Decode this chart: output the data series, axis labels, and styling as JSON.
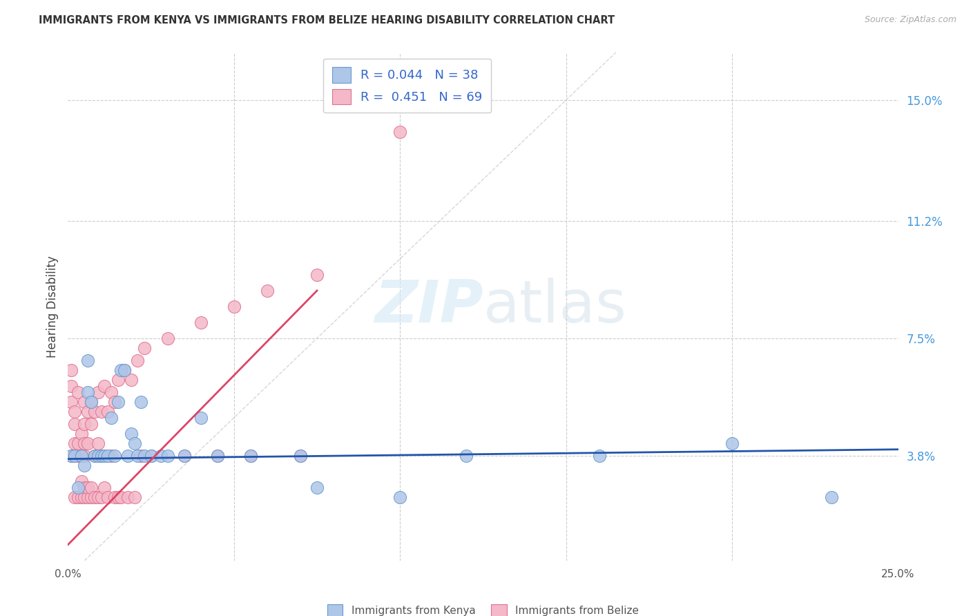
{
  "title": "IMMIGRANTS FROM KENYA VS IMMIGRANTS FROM BELIZE HEARING DISABILITY CORRELATION CHART",
  "source": "Source: ZipAtlas.com",
  "ylabel": "Hearing Disability",
  "xlim": [
    0.0,
    0.25
  ],
  "ylim": [
    0.005,
    0.165
  ],
  "ytick_positions": [
    0.038,
    0.075,
    0.112,
    0.15
  ],
  "ytick_labels": [
    "3.8%",
    "7.5%",
    "11.2%",
    "15.0%"
  ],
  "grid_color": "#cccccc",
  "background_color": "#ffffff",
  "kenya_color": "#aec6e8",
  "kenya_edge": "#6699cc",
  "belize_color": "#f4b8c8",
  "belize_edge": "#e07090",
  "kenya_R": 0.044,
  "kenya_N": 38,
  "belize_R": 0.451,
  "belize_N": 69,
  "kenya_x": [
    0.001,
    0.002,
    0.003,
    0.004,
    0.005,
    0.006,
    0.007,
    0.008,
    0.009,
    0.01,
    0.011,
    0.012,
    0.013,
    0.014,
    0.015,
    0.016,
    0.017,
    0.018,
    0.019,
    0.02,
    0.021,
    0.022,
    0.023,
    0.025,
    0.028,
    0.03,
    0.035,
    0.04,
    0.045,
    0.055,
    0.07,
    0.075,
    0.1,
    0.12,
    0.16,
    0.2,
    0.23,
    0.006
  ],
  "kenya_y": [
    0.038,
    0.038,
    0.028,
    0.038,
    0.035,
    0.058,
    0.055,
    0.038,
    0.038,
    0.038,
    0.038,
    0.038,
    0.05,
    0.038,
    0.055,
    0.065,
    0.065,
    0.038,
    0.045,
    0.042,
    0.038,
    0.055,
    0.038,
    0.038,
    0.038,
    0.038,
    0.038,
    0.05,
    0.038,
    0.038,
    0.038,
    0.028,
    0.025,
    0.038,
    0.038,
    0.042,
    0.025,
    0.068
  ],
  "belize_x": [
    0.001,
    0.001,
    0.001,
    0.001,
    0.002,
    0.002,
    0.002,
    0.002,
    0.002,
    0.003,
    0.003,
    0.003,
    0.003,
    0.004,
    0.004,
    0.004,
    0.004,
    0.005,
    0.005,
    0.005,
    0.005,
    0.005,
    0.005,
    0.006,
    0.006,
    0.006,
    0.006,
    0.007,
    0.007,
    0.007,
    0.007,
    0.008,
    0.008,
    0.008,
    0.009,
    0.009,
    0.009,
    0.01,
    0.01,
    0.01,
    0.011,
    0.011,
    0.012,
    0.012,
    0.013,
    0.013,
    0.014,
    0.014,
    0.015,
    0.015,
    0.016,
    0.017,
    0.018,
    0.019,
    0.02,
    0.021,
    0.022,
    0.023,
    0.025,
    0.03,
    0.035,
    0.04,
    0.045,
    0.05,
    0.055,
    0.06,
    0.07,
    0.075,
    0.1
  ],
  "belize_y": [
    0.038,
    0.055,
    0.06,
    0.065,
    0.025,
    0.038,
    0.042,
    0.048,
    0.052,
    0.025,
    0.038,
    0.042,
    0.058,
    0.025,
    0.038,
    0.03,
    0.045,
    0.025,
    0.028,
    0.038,
    0.042,
    0.048,
    0.055,
    0.025,
    0.028,
    0.042,
    0.052,
    0.025,
    0.028,
    0.048,
    0.055,
    0.025,
    0.038,
    0.052,
    0.025,
    0.042,
    0.058,
    0.025,
    0.038,
    0.052,
    0.028,
    0.06,
    0.025,
    0.052,
    0.038,
    0.058,
    0.025,
    0.055,
    0.025,
    0.062,
    0.025,
    0.065,
    0.025,
    0.062,
    0.025,
    0.068,
    0.038,
    0.072,
    0.038,
    0.075,
    0.038,
    0.08,
    0.038,
    0.085,
    0.038,
    0.09,
    0.038,
    0.095,
    0.14
  ],
  "diag_line_color": "#cccccc",
  "kenya_trend_color": "#2255aa",
  "belize_trend_color": "#dd4466",
  "kenya_trend_x": [
    0.0,
    0.25
  ],
  "kenya_trend_y": [
    0.037,
    0.04
  ],
  "belize_trend_x": [
    0.0,
    0.075
  ],
  "belize_trend_y": [
    0.01,
    0.09
  ]
}
